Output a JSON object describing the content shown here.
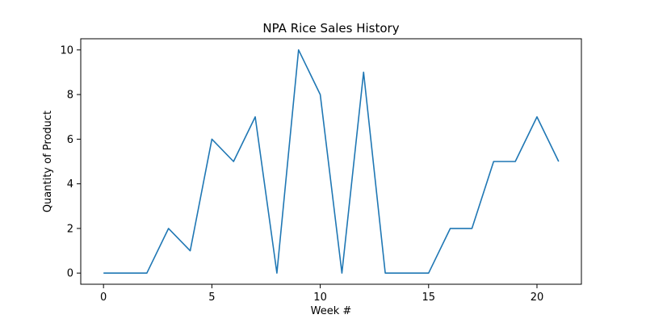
{
  "chart_data": {
    "type": "line",
    "title": "NPA Rice Sales History",
    "xlabel": "Week #",
    "ylabel": "Quantity of Product",
    "x": [
      0,
      1,
      2,
      3,
      4,
      5,
      6,
      7,
      8,
      9,
      10,
      11,
      12,
      13,
      14,
      15,
      16,
      17,
      18,
      19,
      20,
      21
    ],
    "series": [
      {
        "values": [
          0,
          0,
          0,
          2,
          1,
          6,
          5,
          7,
          0,
          10,
          8,
          0,
          9,
          0,
          0,
          0,
          2,
          2,
          5,
          5,
          7,
          5
        ]
      }
    ],
    "xlim": [
      -1.05,
      22.05
    ],
    "ylim": [
      -0.5,
      10.5
    ],
    "xticks": [
      0,
      5,
      10,
      15,
      20
    ],
    "yticks": [
      0,
      2,
      4,
      6,
      8,
      10
    ],
    "line_color": "#1f77b4",
    "grid": false,
    "legend": "none"
  }
}
